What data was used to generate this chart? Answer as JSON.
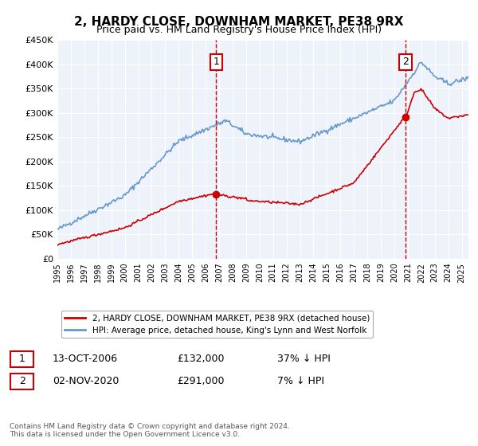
{
  "title": "2, HARDY CLOSE, DOWNHAM MARKET, PE38 9RX",
  "subtitle": "Price paid vs. HM Land Registry's House Price Index (HPI)",
  "legend_line1": "2, HARDY CLOSE, DOWNHAM MARKET, PE38 9RX (detached house)",
  "legend_line2": "HPI: Average price, detached house, King's Lynn and West Norfolk",
  "sale1_date": "13-OCT-2006",
  "sale1_price": "£132,000",
  "sale1_hpi": "37% ↓ HPI",
  "sale1_year": 2006.79,
  "sale1_price_val": 132000,
  "sale2_date": "02-NOV-2020",
  "sale2_price": "£291,000",
  "sale2_hpi": "7% ↓ HPI",
  "sale2_year": 2020.84,
  "sale2_price_val": 291000,
  "ymax": 450000,
  "ytick_step": 50000,
  "xmin": 1995,
  "xmax": 2025.5,
  "background_color": "#eef3fb",
  "red_color": "#cc0000",
  "blue_color": "#6699cc",
  "footer": "Contains HM Land Registry data © Crown copyright and database right 2024.\nThis data is licensed under the Open Government Licence v3.0."
}
